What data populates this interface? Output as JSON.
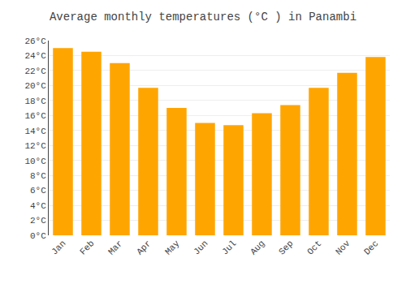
{
  "chart_data": {
    "type": "bar",
    "title": "Average monthly temperatures (°C ) in Panambi",
    "categories": [
      "Jan",
      "Feb",
      "Mar",
      "Apr",
      "May",
      "Jun",
      "Jul",
      "Aug",
      "Sep",
      "Oct",
      "Nov",
      "Dec"
    ],
    "values": [
      25.0,
      24.5,
      23.0,
      19.7,
      17.0,
      15.0,
      14.7,
      16.3,
      17.4,
      19.7,
      21.7,
      23.8
    ],
    "color": "#FFA500",
    "ylim": [
      0,
      26
    ],
    "yticks": [
      {
        "value": 0,
        "label": "0°C"
      },
      {
        "value": 2,
        "label": "2°C"
      },
      {
        "value": 4,
        "label": "4°C"
      },
      {
        "value": 6,
        "label": "6°C"
      },
      {
        "value": 8,
        "label": "8°C"
      },
      {
        "value": 10,
        "label": "10°C"
      },
      {
        "value": 12,
        "label": "12°C"
      },
      {
        "value": 14,
        "label": "14°C"
      },
      {
        "value": 16,
        "label": "16°C"
      },
      {
        "value": 18,
        "label": "18°C"
      },
      {
        "value": 20,
        "label": "20°C"
      },
      {
        "value": 22,
        "label": "22°C"
      },
      {
        "value": 24,
        "label": "24°C"
      },
      {
        "value": 26,
        "label": "26°C"
      }
    ],
    "grid": true
  }
}
